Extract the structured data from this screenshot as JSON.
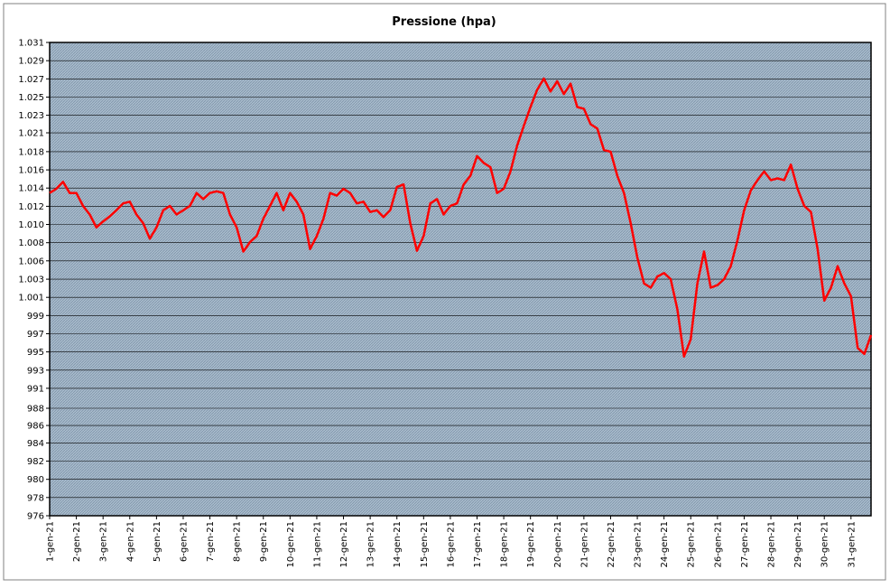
{
  "chart_data": {
    "type": "line",
    "title": "Pressione (hpa)",
    "categories": [
      "1-gen-21",
      null,
      null,
      null,
      "2-gen-21",
      null,
      null,
      null,
      "3-gen-21",
      null,
      null,
      null,
      "4-gen-21",
      null,
      null,
      null,
      "5-gen-21",
      null,
      null,
      null,
      "6-gen-21",
      null,
      null,
      null,
      "7-gen-21",
      null,
      null,
      null,
      "8-gen-21",
      null,
      null,
      null,
      "9-gen-21",
      null,
      null,
      null,
      "10-gen-21",
      null,
      null,
      null,
      "11-gen-21",
      null,
      null,
      null,
      "12-gen-21",
      null,
      null,
      null,
      "13-gen-21",
      null,
      null,
      null,
      "14-gen-21",
      null,
      null,
      null,
      "15-gen-21",
      null,
      null,
      null,
      "16-gen-21",
      null,
      null,
      null,
      "17-gen-21",
      null,
      null,
      null,
      "18-gen-21",
      null,
      null,
      null,
      "19-gen-21",
      null,
      null,
      null,
      "20-gen-21",
      null,
      null,
      null,
      "21-gen-21",
      null,
      null,
      null,
      "22-gen-21",
      null,
      null,
      null,
      "23-gen-21",
      null,
      null,
      null,
      "24-gen-21",
      null,
      null,
      null,
      "25-gen-21",
      null,
      null,
      null,
      "26-gen-21",
      null,
      null,
      null,
      "27-gen-21",
      null,
      null,
      null,
      "28-gen-21",
      null,
      null,
      null,
      "29-gen-21",
      null,
      null,
      null,
      "30-gen-21",
      null,
      null,
      null,
      "31-gen-21",
      null,
      null,
      null
    ],
    "series": [
      {
        "name": "Pressione",
        "color": "#ff0000",
        "values": [
          1013.5,
          1014,
          1014.8,
          1013.5,
          1013.5,
          1012,
          1011,
          1009.5,
          1010.2,
          1010.8,
          1011.5,
          1012.3,
          1012.5,
          1011,
          1010,
          1008.2,
          1009.5,
          1011.5,
          1012,
          1011,
          1011.5,
          1012,
          1013.5,
          1012.8,
          1013.5,
          1013.7,
          1013.5,
          1011,
          1009.5,
          1006.7,
          1007.8,
          1008.5,
          1010.5,
          1012,
          1013.5,
          1011.5,
          1013.5,
          1012.5,
          1011,
          1007,
          1008.5,
          1010.5,
          1013.5,
          1013.2,
          1014,
          1013.5,
          1012.3,
          1012.5,
          1011.3,
          1011.5,
          1010.7,
          1011.5,
          1014.2,
          1014.5,
          1010,
          1006.8,
          1008.5,
          1012.3,
          1012.8,
          1011,
          1012,
          1012.3,
          1014.5,
          1015.5,
          1017.8,
          1017,
          1016.5,
          1013.5,
          1014,
          1016,
          1019,
          1021.3,
          1023.5,
          1025.5,
          1026.8,
          1025.3,
          1026.5,
          1025,
          1026.2,
          1023.5,
          1023.3,
          1021.5,
          1021,
          1018.5,
          1018.3,
          1015.5,
          1013.5,
          1010,
          1006,
          1003,
          1002.5,
          1003.8,
          1004.2,
          1003.5,
          1000,
          994.5,
          996.5,
          1003,
          1006.7,
          1002.5,
          1002.8,
          1003.5,
          1005,
          1008,
          1011.5,
          1013.8,
          1015,
          1016,
          1015,
          1015.2,
          1015,
          1016.8,
          1014,
          1012,
          1011.3,
          1007,
          1001,
          1002.5,
          1005,
          1003,
          1001.5,
          995.5,
          994.8,
          997
        ]
      }
    ],
    "ylim": [
      976,
      1031
    ],
    "yticks": [
      976,
      {
        "value": 978.12,
        "label": "978"
      },
      {
        "value": 980.23,
        "label": "980"
      },
      {
        "value": 982.35,
        "label": "982"
      },
      {
        "value": 984.46,
        "label": "984"
      },
      {
        "value": 986.49,
        "label": "986"
      },
      {
        "value": 988.49,
        "label": "988"
      },
      {
        "value": 990.81,
        "label": "991"
      },
      {
        "value": 992.92,
        "label": "993"
      },
      {
        "value": 995.04,
        "label": "995"
      },
      {
        "value": 997.15,
        "label": "997"
      },
      {
        "value": 999.27,
        "label": "999"
      },
      {
        "value": 1001.38,
        "label": "1.001"
      },
      {
        "value": 1003.49,
        "label": "1.003"
      },
      {
        "value": 1005.62,
        "label": "1.006"
      },
      {
        "value": 1007.73,
        "label": "1.008"
      },
      {
        "value": 1009.85,
        "label": "1.010"
      },
      {
        "value": 1011.96,
        "label": "1.012"
      },
      {
        "value": 1014.08,
        "label": "1.014"
      },
      {
        "value": 1016.19,
        "label": "1.016"
      },
      {
        "value": 1018.31,
        "label": "1.018"
      },
      {
        "value": 1020.5,
        "label": "1.021"
      },
      {
        "value": 1022.54,
        "label": "1.023"
      },
      {
        "value": 1024.65,
        "label": "1.025"
      },
      {
        "value": 1026.77,
        "label": "1.027"
      },
      {
        "value": 1028.88,
        "label": "1.029"
      },
      {
        "value": 1031,
        "label": "1.031"
      }
    ],
    "grid": true
  }
}
